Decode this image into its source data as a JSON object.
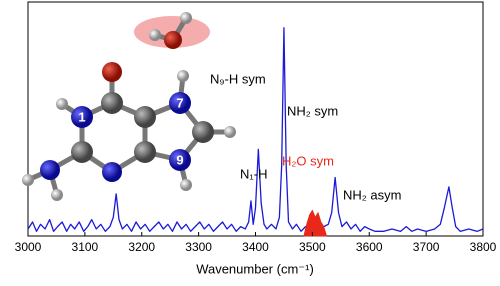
{
  "chart_data": {
    "type": "line",
    "x_label": "Wavenumber (cm⁻¹)",
    "xlim": [
      3000,
      3800
    ],
    "xticks": [
      3000,
      3100,
      3200,
      3300,
      3400,
      3500,
      3600,
      3700,
      3800
    ],
    "ylim": [
      0,
      1
    ],
    "annotations": [
      "N₉-H sym",
      "NH₂ sym",
      "N₁-H",
      "H₂O sym",
      "NH₂ asym"
    ],
    "molecule_labels": [
      "1",
      "7",
      "9"
    ],
    "series": [
      {
        "color": "#1a1ad8",
        "fill": false,
        "x": [
          3000,
          3008,
          3015,
          3022,
          3030,
          3038,
          3045,
          3052,
          3060,
          3068,
          3075,
          3082,
          3090,
          3098,
          3105,
          3112,
          3120,
          3128,
          3136,
          3144,
          3150,
          3155,
          3160,
          3166,
          3174,
          3182,
          3190,
          3198,
          3206,
          3214,
          3222,
          3230,
          3238,
          3246,
          3254,
          3262,
          3270,
          3278,
          3286,
          3294,
          3302,
          3310,
          3318,
          3326,
          3334,
          3342,
          3350,
          3358,
          3366,
          3374,
          3382,
          3388,
          3392,
          3396,
          3400,
          3405,
          3410,
          3415,
          3420,
          3428,
          3436,
          3442,
          3446,
          3450,
          3454,
          3458,
          3465,
          3472,
          3480,
          3488,
          3496,
          3504,
          3512,
          3520,
          3528,
          3534,
          3540,
          3546,
          3552,
          3560,
          3568,
          3576,
          3584,
          3592,
          3600,
          3610,
          3625,
          3640,
          3655,
          3665,
          3675,
          3685,
          3700,
          3715,
          3725,
          3732,
          3740,
          3746,
          3752,
          3760,
          3775,
          3790,
          3800
        ],
        "values": [
          0.03,
          0.06,
          0.02,
          0.05,
          0.03,
          0.07,
          0.02,
          0.04,
          0.06,
          0.02,
          0.05,
          0.03,
          0.06,
          0.02,
          0.04,
          0.07,
          0.03,
          0.05,
          0.02,
          0.04,
          0.08,
          0.18,
          0.07,
          0.03,
          0.05,
          0.02,
          0.06,
          0.03,
          0.05,
          0.02,
          0.04,
          0.06,
          0.03,
          0.05,
          0.02,
          0.06,
          0.03,
          0.05,
          0.02,
          0.04,
          0.06,
          0.03,
          0.05,
          0.02,
          0.04,
          0.06,
          0.03,
          0.05,
          0.02,
          0.04,
          0.03,
          0.06,
          0.15,
          0.05,
          0.12,
          0.37,
          0.14,
          0.05,
          0.03,
          0.05,
          0.03,
          0.08,
          0.3,
          0.89,
          0.3,
          0.06,
          0.03,
          0.05,
          0.02,
          0.04,
          0.03,
          0.05,
          0.02,
          0.04,
          0.05,
          0.1,
          0.25,
          0.1,
          0.04,
          0.06,
          0.03,
          0.05,
          0.02,
          0.04,
          0.03,
          0.02,
          0.02,
          0.03,
          0.02,
          0.04,
          0.02,
          0.03,
          0.02,
          0.03,
          0.05,
          0.12,
          0.21,
          0.12,
          0.04,
          0.02,
          0.03,
          0.02,
          0.03
        ]
      },
      {
        "color": "#e8281b",
        "fill": true,
        "x": [
          3485,
          3490,
          3495,
          3500,
          3505,
          3510,
          3515,
          3520,
          3525
        ],
        "values": [
          0,
          0.05,
          0.09,
          0.11,
          0.08,
          0.1,
          0.06,
          0.04,
          0
        ]
      }
    ]
  }
}
